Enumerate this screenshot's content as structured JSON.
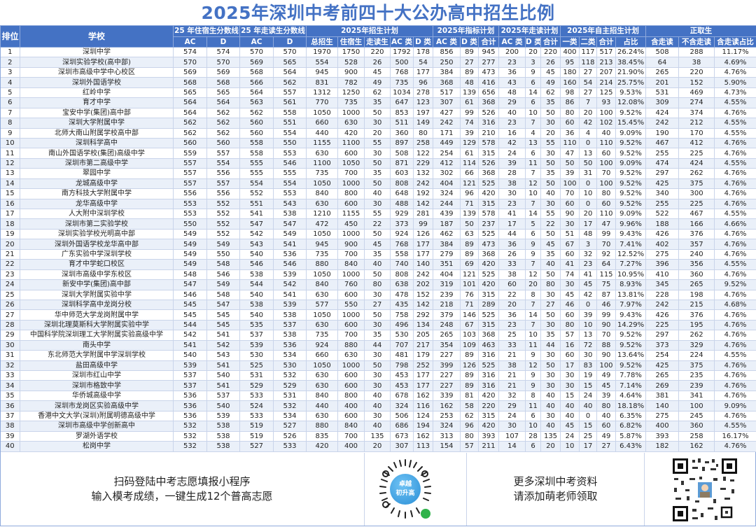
{
  "title": "2025年深圳中考前四十大公办高中招生比例",
  "colors": {
    "header_bg": "#4472c4",
    "title": "#4472c4",
    "row_alt": "#eaf0f9",
    "grid": "#c9d4ea"
  },
  "header": {
    "rank": "排位",
    "school": "学校",
    "groups": {
      "boarding_cutoff": "25 年住宿生分数线",
      "day_cutoff": "25 年走读生分数线",
      "plan_2025": "2025年招生计划",
      "quota_plan": "2025年指标计划",
      "day_plan": "2025年走读计划",
      "self_plan": "2025年自主招生计划",
      "formal": "正取生"
    },
    "sub": {
      "ac": "AC",
      "d": "D",
      "total": "总招生",
      "boarding": "住宿生",
      "day": "走读生",
      "ac_class": "AC 类",
      "d_class": "D 类",
      "sum": "合计",
      "class1": "一类",
      "class2": "二类",
      "ratio": "占比",
      "incl_day": "含走读",
      "excl_day": "不含走读",
      "incl_day_ratio": "含走读占比"
    }
  },
  "rows": [
    [
      "1",
      "深圳中学",
      "574",
      "574",
      "570",
      "570",
      "1970",
      "1750",
      "220",
      "1792",
      "178",
      "856",
      "89",
      "945",
      "200",
      "20",
      "220",
      "400",
      "117",
      "517",
      "26.24%",
      "508",
      "288",
      "11.17%"
    ],
    [
      "2",
      "深圳实验学校(高中部)",
      "570",
      "570",
      "569",
      "565",
      "554",
      "528",
      "26",
      "500",
      "54",
      "250",
      "27",
      "277",
      "23",
      "3",
      "26",
      "95",
      "118",
      "213",
      "38.45%",
      "64",
      "38",
      "4.69%"
    ],
    [
      "3",
      "深圳市高级中学中心校区",
      "569",
      "569",
      "568",
      "564",
      "945",
      "900",
      "45",
      "768",
      "177",
      "384",
      "89",
      "473",
      "36",
      "9",
      "45",
      "180",
      "27",
      "207",
      "21.90%",
      "265",
      "220",
      "4.76%"
    ],
    [
      "4",
      "深圳外国语学校",
      "568",
      "568",
      "566",
      "562",
      "831",
      "782",
      "49",
      "735",
      "96",
      "368",
      "48",
      "416",
      "43",
      "6",
      "49",
      "160",
      "54",
      "214",
      "25.75%",
      "201",
      "152",
      "5.90%"
    ],
    [
      "5",
      "红岭中学",
      "565",
      "565",
      "564",
      "557",
      "1312",
      "1250",
      "62",
      "1034",
      "278",
      "517",
      "139",
      "656",
      "48",
      "14",
      "62",
      "98",
      "27",
      "125",
      "9.53%",
      "531",
      "469",
      "4.73%"
    ],
    [
      "6",
      "育才中学",
      "564",
      "564",
      "563",
      "561",
      "770",
      "735",
      "35",
      "647",
      "123",
      "307",
      "61",
      "368",
      "29",
      "6",
      "35",
      "86",
      "7",
      "93",
      "12.08%",
      "309",
      "274",
      "4.55%"
    ],
    [
      "7",
      "宝安中学(集团)高中部",
      "564",
      "562",
      "562",
      "558",
      "1050",
      "1000",
      "50",
      "853",
      "197",
      "427",
      "99",
      "526",
      "40",
      "10",
      "50",
      "80",
      "20",
      "100",
      "9.52%",
      "424",
      "374",
      "4.76%"
    ],
    [
      "8",
      "深圳大学附属中学",
      "562",
      "562",
      "560",
      "551",
      "660",
      "630",
      "30",
      "511",
      "149",
      "242",
      "74",
      "316",
      "23",
      "7",
      "30",
      "60",
      "42",
      "102",
      "15.45%",
      "242",
      "212",
      "4.55%"
    ],
    [
      "9",
      "北师大南山附属学校高中部",
      "562",
      "562",
      "560",
      "554",
      "440",
      "420",
      "20",
      "360",
      "80",
      "171",
      "39",
      "210",
      "16",
      "4",
      "20",
      "36",
      "4",
      "40",
      "9.09%",
      "190",
      "170",
      "4.55%"
    ],
    [
      "10",
      "深圳科学高中",
      "560",
      "560",
      "558",
      "550",
      "1155",
      "1100",
      "55",
      "897",
      "258",
      "449",
      "129",
      "578",
      "42",
      "13",
      "55",
      "110",
      "0",
      "110",
      "9.52%",
      "467",
      "412",
      "4.76%"
    ],
    [
      "11",
      "南山外国语学校(集团)高级中学",
      "559",
      "557",
      "558",
      "553",
      "630",
      "600",
      "30",
      "508",
      "122",
      "254",
      "61",
      "315",
      "24",
      "6",
      "30",
      "47",
      "13",
      "60",
      "9.52%",
      "255",
      "225",
      "4.76%"
    ],
    [
      "12",
      "深圳市第二高级中学",
      "557",
      "554",
      "555",
      "546",
      "1100",
      "1050",
      "50",
      "871",
      "229",
      "412",
      "114",
      "526",
      "39",
      "11",
      "50",
      "50",
      "50",
      "100",
      "9.09%",
      "474",
      "424",
      "4.55%"
    ],
    [
      "13",
      "翠园中学",
      "557",
      "556",
      "555",
      "555",
      "735",
      "700",
      "35",
      "603",
      "132",
      "302",
      "66",
      "368",
      "28",
      "7",
      "35",
      "39",
      "31",
      "70",
      "9.52%",
      "297",
      "262",
      "4.76%"
    ],
    [
      "14",
      "龙城高级中学",
      "557",
      "557",
      "554",
      "554",
      "1050",
      "1000",
      "50",
      "808",
      "242",
      "404",
      "121",
      "525",
      "38",
      "12",
      "50",
      "100",
      "0",
      "100",
      "9.52%",
      "425",
      "375",
      "4.76%"
    ],
    [
      "15",
      "南方科技大学附属中学",
      "556",
      "556",
      "552",
      "553",
      "840",
      "800",
      "40",
      "648",
      "192",
      "324",
      "96",
      "420",
      "30",
      "10",
      "40",
      "70",
      "10",
      "80",
      "9.52%",
      "340",
      "300",
      "4.76%"
    ],
    [
      "16",
      "龙华高级中学",
      "553",
      "552",
      "551",
      "543",
      "630",
      "600",
      "30",
      "488",
      "142",
      "244",
      "71",
      "315",
      "23",
      "7",
      "30",
      "60",
      "0",
      "60",
      "9.52%",
      "255",
      "225",
      "4.76%"
    ],
    [
      "17",
      "人大附中深圳学校",
      "553",
      "552",
      "541",
      "538",
      "1210",
      "1155",
      "55",
      "929",
      "281",
      "439",
      "139",
      "578",
      "41",
      "14",
      "55",
      "90",
      "20",
      "110",
      "9.09%",
      "522",
      "467",
      "4.55%"
    ],
    [
      "18",
      "深圳市第二实验学校",
      "550",
      "552",
      "547",
      "547",
      "472",
      "450",
      "22",
      "373",
      "99",
      "187",
      "50",
      "237",
      "17",
      "5",
      "22",
      "30",
      "17",
      "47",
      "9.96%",
      "188",
      "166",
      "4.66%"
    ],
    [
      "19",
      "深圳实验学校光明高中部",
      "549",
      "552",
      "542",
      "549",
      "1050",
      "1000",
      "50",
      "924",
      "126",
      "462",
      "63",
      "525",
      "44",
      "6",
      "50",
      "51",
      "48",
      "99",
      "9.43%",
      "426",
      "376",
      "4.76%"
    ],
    [
      "20",
      "深圳外国语学校龙华高中部",
      "549",
      "549",
      "543",
      "541",
      "945",
      "900",
      "45",
      "768",
      "177",
      "384",
      "89",
      "473",
      "36",
      "9",
      "45",
      "67",
      "3",
      "70",
      "7.41%",
      "402",
      "357",
      "4.76%"
    ],
    [
      "21",
      "广东实验中学深圳学校",
      "549",
      "550",
      "540",
      "536",
      "735",
      "700",
      "35",
      "558",
      "177",
      "279",
      "89",
      "368",
      "26",
      "9",
      "35",
      "60",
      "32",
      "92",
      "12.52%",
      "275",
      "240",
      "4.76%"
    ],
    [
      "22",
      "育才中学蛇口校区",
      "549",
      "548",
      "546",
      "546",
      "880",
      "840",
      "40",
      "740",
      "140",
      "351",
      "69",
      "420",
      "33",
      "7",
      "40",
      "41",
      "23",
      "64",
      "7.27%",
      "396",
      "356",
      "4.55%"
    ],
    [
      "23",
      "深圳市高级中学东校区",
      "548",
      "546",
      "538",
      "539",
      "1050",
      "1000",
      "50",
      "808",
      "242",
      "404",
      "121",
      "525",
      "38",
      "12",
      "50",
      "74",
      "41",
      "115",
      "10.95%",
      "410",
      "360",
      "4.76%"
    ],
    [
      "24",
      "新安中学(集团)高中部",
      "547",
      "549",
      "544",
      "542",
      "840",
      "760",
      "80",
      "638",
      "202",
      "319",
      "101",
      "420",
      "60",
      "20",
      "80",
      "30",
      "45",
      "75",
      "8.93%",
      "345",
      "265",
      "9.52%"
    ],
    [
      "25",
      "深圳大学附属实验中学",
      "546",
      "548",
      "540",
      "541",
      "630",
      "600",
      "30",
      "478",
      "152",
      "239",
      "76",
      "315",
      "22",
      "8",
      "30",
      "45",
      "42",
      "87",
      "13.81%",
      "228",
      "198",
      "4.76%"
    ],
    [
      "26",
      "深圳科学高中龙岗分校",
      "545",
      "547",
      "538",
      "539",
      "577",
      "550",
      "27",
      "435",
      "142",
      "218",
      "71",
      "289",
      "20",
      "7",
      "27",
      "46",
      "0",
      "46",
      "7.97%",
      "242",
      "215",
      "4.68%"
    ],
    [
      "27",
      "华中师范大学龙岗附属中学",
      "545",
      "545",
      "540",
      "538",
      "1050",
      "1000",
      "50",
      "758",
      "292",
      "379",
      "146",
      "525",
      "36",
      "14",
      "50",
      "60",
      "39",
      "99",
      "9.43%",
      "426",
      "376",
      "4.76%"
    ],
    [
      "28",
      "深圳北理莫斯科大学附属实验中学",
      "544",
      "545",
      "535",
      "537",
      "630",
      "600",
      "30",
      "496",
      "134",
      "248",
      "67",
      "315",
      "23",
      "7",
      "30",
      "80",
      "10",
      "90",
      "14.29%",
      "225",
      "195",
      "4.76%"
    ],
    [
      "29",
      "中国科学院深圳理工大学附属实验高级中学",
      "542",
      "541",
      "537",
      "538",
      "735",
      "700",
      "35",
      "530",
      "205",
      "265",
      "103",
      "368",
      "25",
      "10",
      "35",
      "57",
      "13",
      "70",
      "9.52%",
      "297",
      "262",
      "4.76%"
    ],
    [
      "30",
      "南头中学",
      "541",
      "542",
      "539",
      "536",
      "924",
      "880",
      "44",
      "707",
      "217",
      "354",
      "109",
      "463",
      "33",
      "11",
      "44",
      "16",
      "72",
      "88",
      "9.52%",
      "373",
      "329",
      "4.76%"
    ],
    [
      "31",
      "东北师范大学附属中学深圳学校",
      "540",
      "543",
      "530",
      "534",
      "660",
      "630",
      "30",
      "481",
      "179",
      "227",
      "89",
      "316",
      "21",
      "9",
      "30",
      "60",
      "30",
      "90",
      "13.64%",
      "254",
      "224",
      "4.55%"
    ],
    [
      "32",
      "盐田高级中学",
      "539",
      "541",
      "525",
      "530",
      "1050",
      "1000",
      "50",
      "798",
      "252",
      "399",
      "126",
      "525",
      "38",
      "12",
      "50",
      "17",
      "83",
      "100",
      "9.52%",
      "425",
      "375",
      "4.76%"
    ],
    [
      "33",
      "深圳市红山中学",
      "537",
      "540",
      "531",
      "532",
      "630",
      "600",
      "30",
      "453",
      "177",
      "227",
      "89",
      "316",
      "21",
      "9",
      "30",
      "30",
      "19",
      "49",
      "7.78%",
      "265",
      "235",
      "4.76%"
    ],
    [
      "34",
      "深圳市格致中学",
      "537",
      "541",
      "529",
      "529",
      "630",
      "600",
      "30",
      "453",
      "177",
      "227",
      "89",
      "316",
      "21",
      "9",
      "30",
      "30",
      "15",
      "45",
      "7.14%",
      "269",
      "239",
      "4.76%"
    ],
    [
      "35",
      "华侨城高级中学",
      "536",
      "537",
      "533",
      "531",
      "840",
      "800",
      "40",
      "678",
      "162",
      "339",
      "81",
      "420",
      "32",
      "8",
      "40",
      "15",
      "24",
      "39",
      "4.64%",
      "381",
      "341",
      "4.76%"
    ],
    [
      "36",
      "深圳市龙岗区实验高级中学",
      "536",
      "540",
      "524",
      "532",
      "440",
      "400",
      "40",
      "324",
      "116",
      "162",
      "58",
      "220",
      "29",
      "11",
      "40",
      "40",
      "40",
      "80",
      "18.18%",
      "140",
      "100",
      "9.09%"
    ],
    [
      "37",
      "香港中文大学(深圳)附属明德高级中学",
      "536",
      "539",
      "533",
      "534",
      "630",
      "600",
      "30",
      "506",
      "124",
      "253",
      "62",
      "315",
      "24",
      "6",
      "30",
      "40",
      "0",
      "40",
      "6.35%",
      "275",
      "245",
      "4.76%"
    ],
    [
      "38",
      "深圳市高级中学创新高中",
      "532",
      "538",
      "519",
      "527",
      "880",
      "840",
      "40",
      "686",
      "194",
      "324",
      "96",
      "420",
      "30",
      "10",
      "40",
      "45",
      "15",
      "60",
      "6.82%",
      "400",
      "360",
      "4.55%"
    ],
    [
      "39",
      "罗湖外语学校",
      "532",
      "538",
      "519",
      "526",
      "835",
      "700",
      "135",
      "673",
      "162",
      "313",
      "80",
      "393",
      "107",
      "28",
      "135",
      "24",
      "25",
      "49",
      "5.87%",
      "393",
      "258",
      "16.17%"
    ],
    [
      "40",
      "松岗中学",
      "532",
      "538",
      "527",
      "533",
      "420",
      "400",
      "20",
      "307",
      "113",
      "154",
      "57",
      "211",
      "14",
      "6",
      "20",
      "10",
      "17",
      "27",
      "6.43%",
      "182",
      "162",
      "4.76%"
    ]
  ],
  "footer": {
    "left_line1": "扫码登陆中考志愿填报小程序",
    "left_line2": "输入模考成绩，一键生成12个普高志愿",
    "mini_program_label_1": "卓越",
    "mini_program_label_2": "初升高",
    "mid_line1": "更多深圳中考资料",
    "mid_line2": "请添加萌老师领取"
  }
}
